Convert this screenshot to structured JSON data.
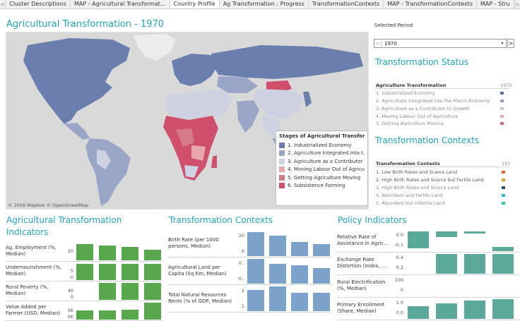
{
  "tabs": [
    {
      "label": "Cluster Descriptions",
      "active": false
    },
    {
      "label": "MAP - Agricultural Transformat...",
      "active": false
    },
    {
      "label": "Country Profile",
      "active": true
    },
    {
      "label": "Ag Transformation : Progress",
      "active": false
    },
    {
      "label": "TransformationContexts",
      "active": false
    },
    {
      "label": "MAP - TransformationContexts",
      "active": false
    },
    {
      "label": "MAP - Stru",
      "active": false
    }
  ],
  "tab_nav": {
    "prev": "<",
    "next": ">"
  },
  "map_title": "Agricultural Transformation - 1970",
  "map_attribution": "© 2026 Mapbox © OpenStreetMap",
  "legend": {
    "title": "Stages of Agricultural Transformati...",
    "items": [
      {
        "label": "1. Industrialized Economy",
        "color": "#6a7fad"
      },
      {
        "label": "2. Agriculture Integrated into t...",
        "color": "#9aa6c8"
      },
      {
        "label": "3. Agriculture as a Contributor ...",
        "color": "#cdd1e2"
      },
      {
        "label": "4. Moving Labour Out of Agricul...",
        "color": "#e8a8ae"
      },
      {
        "label": "5. Getting Agriculture Moving",
        "color": "#d47a88"
      },
      {
        "label": "6. Subsistence Farming",
        "color": "#cf4f6c"
      }
    ]
  },
  "period": {
    "label": "Selected Period",
    "value": "1970",
    "prev_icon": "<",
    "dropdown_icon": "▾",
    "next_icon": ">"
  },
  "status": {
    "title": "Transformation Status",
    "header": "Agriculture Transformation",
    "year": "1970",
    "items": [
      {
        "label": "1. Industrialized Economy",
        "color": "#5f6fa0"
      },
      {
        "label": "2. Agriculture Integrated into the Macro Economy",
        "color": "#8f9bc0"
      },
      {
        "label": "3. Agriculture as a Contributor to Growth",
        "color": "#c6cadb"
      },
      {
        "label": "4. Moving Labour Out of Agriculture",
        "color": "#e9a6ae"
      },
      {
        "label": "5. Getting Agriculture Moving",
        "color": "#d66a7a"
      }
    ]
  },
  "contexts_list": {
    "title": "Transformation Contexts",
    "header": "Transformation Contexts",
    "year": "197",
    "items": [
      {
        "label": "1. Low Birth Rates and Scarce Land",
        "color": "#e2603a"
      },
      {
        "label": "2. High Birth Rates and Scarce but Fertile Land",
        "color": "#e0a030"
      },
      {
        "label": "3. High Birth Rates and Scarce Land",
        "color": "#2e4f7c"
      },
      {
        "label": "4. Abundant and Fertile Land",
        "color": "#35b3c8"
      },
      {
        "label": "5. Abundant but Infertile Land",
        "color": "#3fc99a"
      }
    ]
  },
  "ag_indicators": {
    "title_line1": "Agricultural Transformation",
    "title_line2": "Indicators",
    "color": "#58a64e",
    "rows": [
      {
        "label": "Ag. Employment (%, Median)",
        "ticks": [
          "20"
        ],
        "values": [
          0.97,
          0.87,
          0.8,
          0.62
        ]
      },
      {
        "label": "Undernourishment (%, Median)",
        "ticks": [
          "5",
          "0"
        ],
        "values": [
          0.95,
          0.95,
          0.95,
          0.95
        ]
      },
      {
        "label": "Rural Poverty (%, Median)",
        "ticks": [
          "40",
          "0"
        ],
        "values": [
          0.0,
          1.0,
          1.0,
          1.0
        ]
      },
      {
        "label": "Value Added per Farmer (USD, Median)",
        "ticks": [
          "5K",
          "0K"
        ],
        "values": [
          0.55,
          0.55,
          0.6,
          1.0
        ]
      }
    ]
  },
  "trans_contexts": {
    "title": "Transformation Contexts",
    "color": "#7aa2cb",
    "rows": [
      {
        "label": "Birth Rate (per 1000 persons, Median)",
        "ticks": [
          "20",
          "0"
        ],
        "values": [
          0.98,
          0.83,
          0.58,
          0.5
        ]
      },
      {
        "label": "Agricultural Land per Capita (Sq Km, Median)",
        "ticks": [
          "0..",
          "0.."
        ],
        "values": [
          1.0,
          0.8,
          0.75,
          0.62
        ]
      },
      {
        "label": "Total Natural Resources Rents (% of GDP, Median)",
        "ticks": [
          "2",
          "1"
        ],
        "values": [
          0.85,
          1.0,
          0.75,
          0.75
        ]
      }
    ]
  },
  "policy": {
    "title": "Policy Indicators",
    "color": "#5ba99b",
    "rows": [
      {
        "label": "Relative Rate of Assistance in Agric...",
        "ticks": [
          "0.0",
          "-0.1"
        ],
        "values": [
          -0.85,
          -0.3,
          -0.1,
          0.2
        ]
      },
      {
        "label": "Exchange Rate Distortion (Index, ...",
        "ticks": [
          "0.4",
          "0.2"
        ],
        "values": [
          0.0,
          1.0,
          1.0,
          1.0
        ]
      },
      {
        "label": "Rural Electrification (%, Median)",
        "ticks": [
          "100",
          "0"
        ],
        "values": [
          0.0,
          0.0,
          0.0,
          0.0
        ]
      },
      {
        "label": "Primary Enrollment (Share, Median)",
        "ticks": [
          "1.0",
          "0.0"
        ],
        "values": [
          0.65,
          0.8,
          0.92,
          1.0
        ]
      }
    ]
  }
}
